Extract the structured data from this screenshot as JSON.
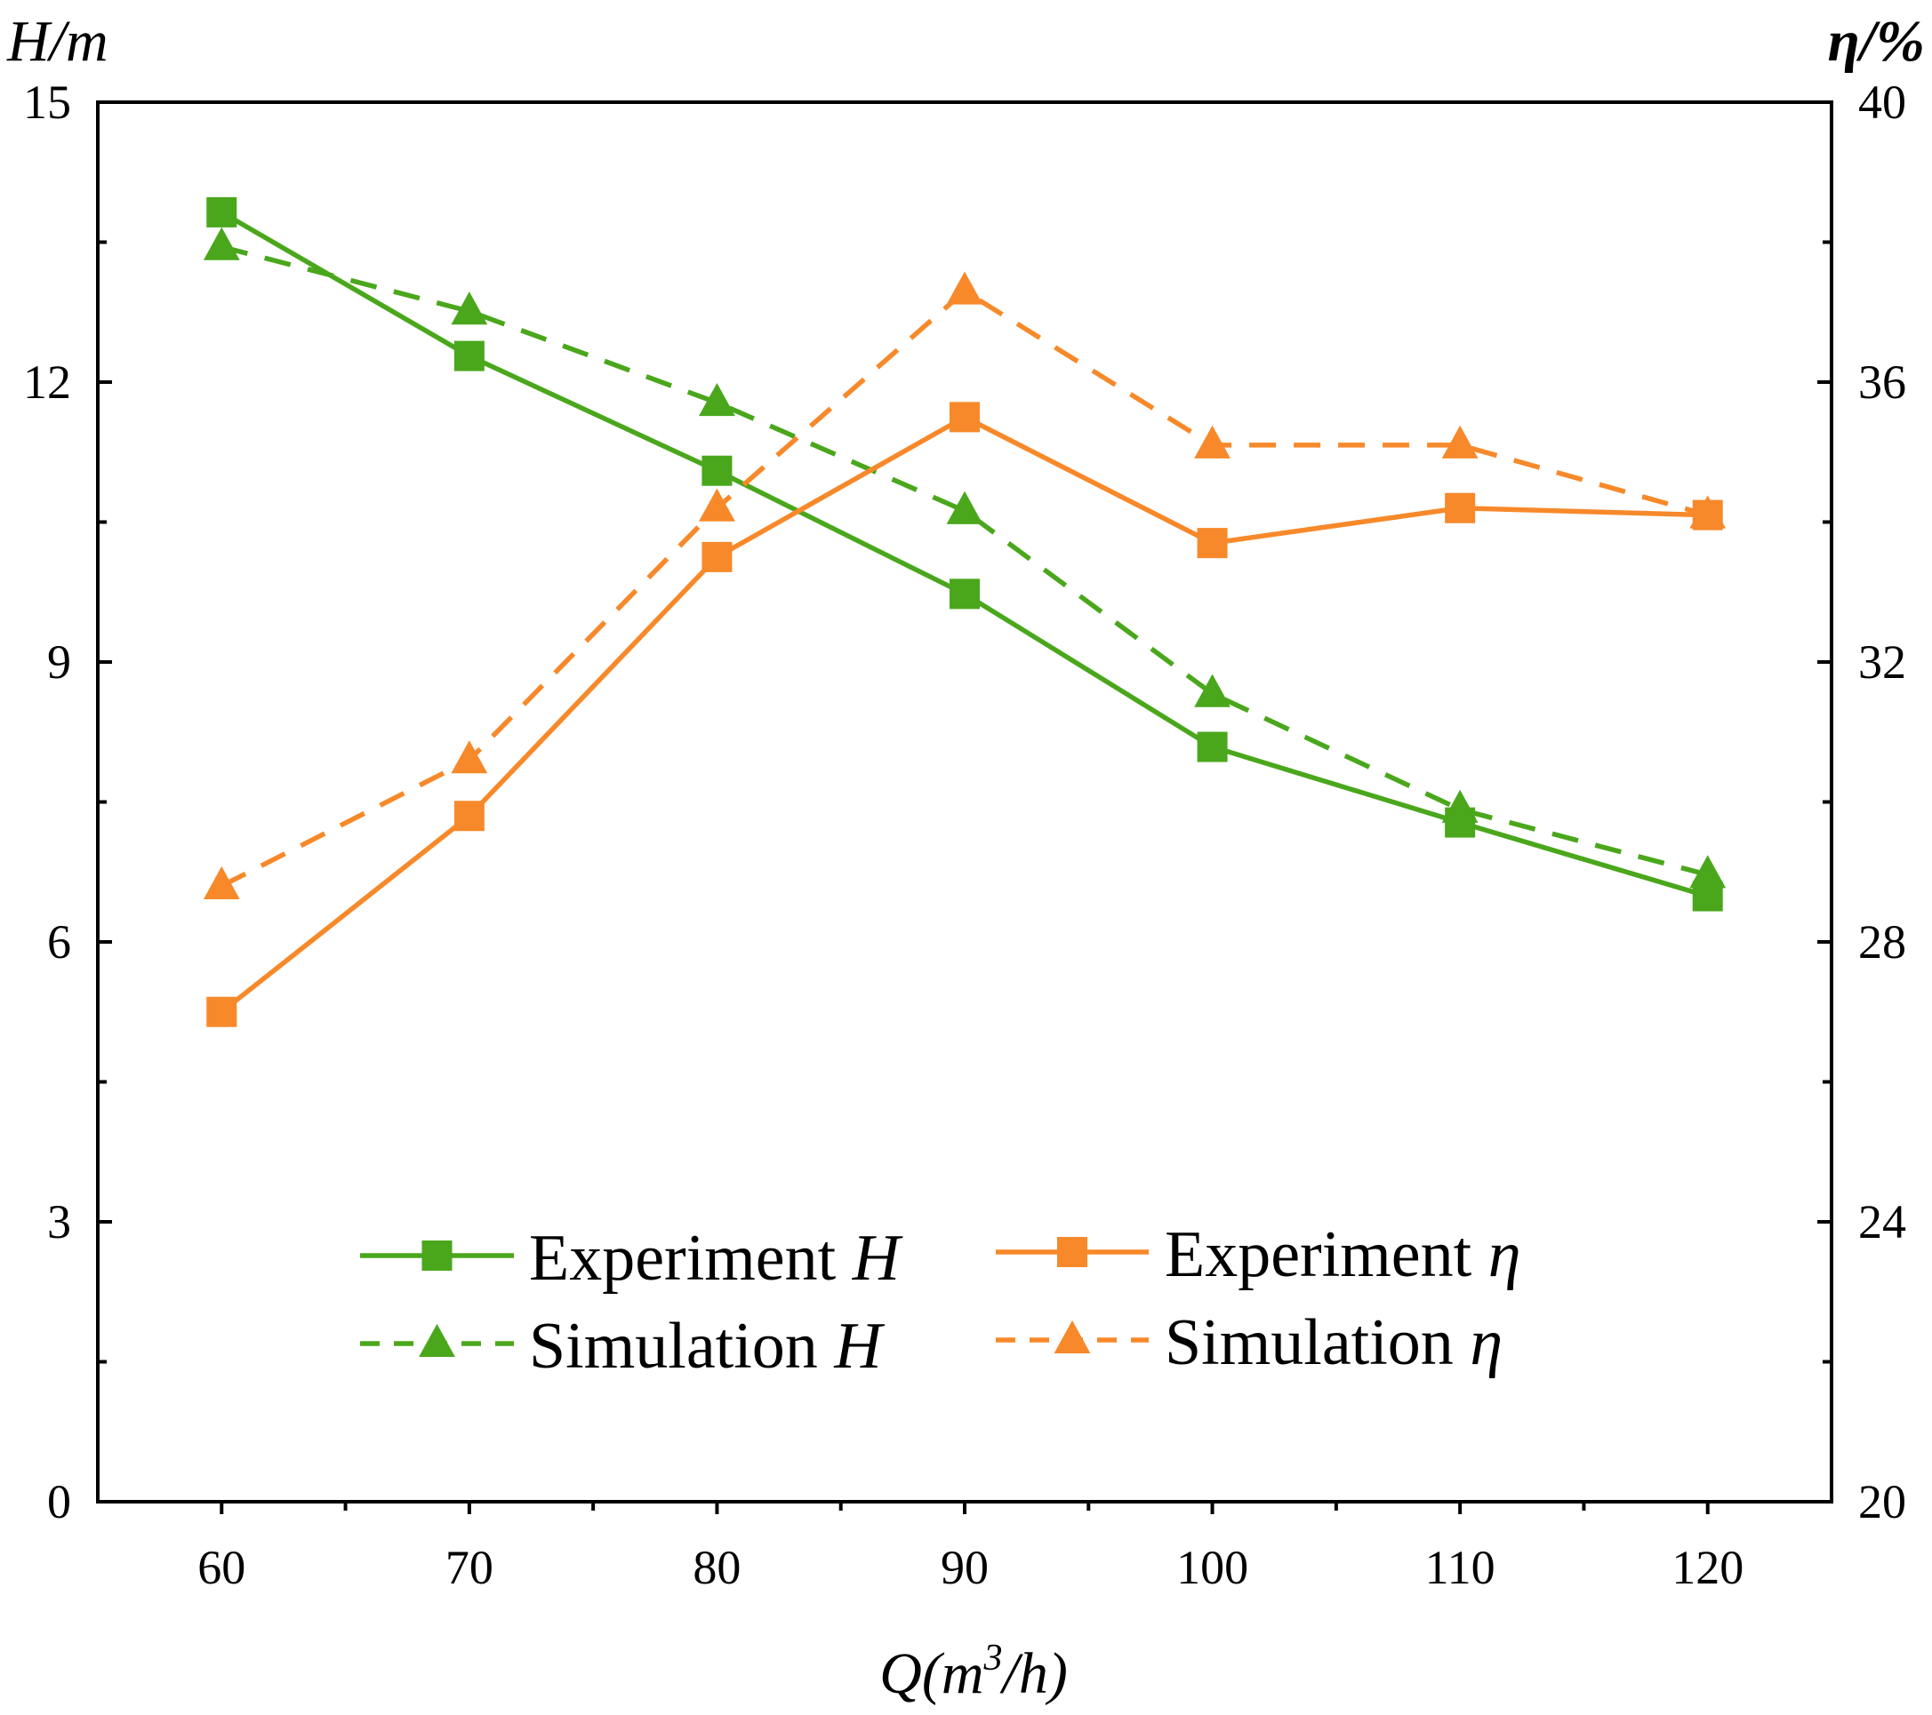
{
  "chart_data": {
    "type": "line",
    "x": [
      60,
      70,
      80,
      90,
      100,
      110,
      120
    ],
    "xlabel": {
      "main": "Q(m",
      "sup": "3",
      "tail": "/h)"
    },
    "xlim": [
      55,
      125
    ],
    "x_ticks": [
      "60",
      "70",
      "80",
      "90",
      "100",
      "110",
      "120"
    ],
    "y_left": {
      "label": "H/m",
      "lim": [
        0,
        15
      ],
      "ticks": [
        "0",
        "3",
        "6",
        "9",
        "12",
        "15"
      ]
    },
    "y_right": {
      "label": "η/%",
      "lim": [
        20,
        40
      ],
      "ticks": [
        "20",
        "24",
        "28",
        "32",
        "36",
        "40"
      ]
    },
    "series": [
      {
        "name": "Experiment H",
        "label_main": "Experiment ",
        "label_var": "H",
        "axis": "left",
        "color": "#4aa71c",
        "dash": false,
        "marker": "square",
        "values": [
          13.82,
          12.28,
          11.05,
          9.73,
          8.09,
          7.28,
          6.49
        ]
      },
      {
        "name": "Simulation H",
        "label_main": "Simulation  ",
        "label_var": "H",
        "axis": "left",
        "color": "#4aa71c",
        "dash": true,
        "marker": "triangle",
        "values": [
          13.45,
          12.76,
          11.78,
          10.62,
          8.66,
          7.42,
          6.72
        ]
      },
      {
        "name": "Experiment η",
        "label_main": "Experiment ",
        "label_var": "η",
        "axis": "right",
        "color": "#f7892a",
        "dash": false,
        "marker": "square",
        "values": [
          27.0,
          29.8,
          33.5,
          35.5,
          33.7,
          34.2,
          34.1
        ]
      },
      {
        "name": "Simulation η",
        "label_main": "Simulation  ",
        "label_var": "η",
        "axis": "right",
        "color": "#f7892a",
        "dash": true,
        "marker": "triangle",
        "values": [
          28.8,
          30.6,
          34.2,
          37.3,
          35.1,
          35.1,
          34.1
        ]
      }
    ],
    "legend": "lower-center",
    "grid": false
  }
}
